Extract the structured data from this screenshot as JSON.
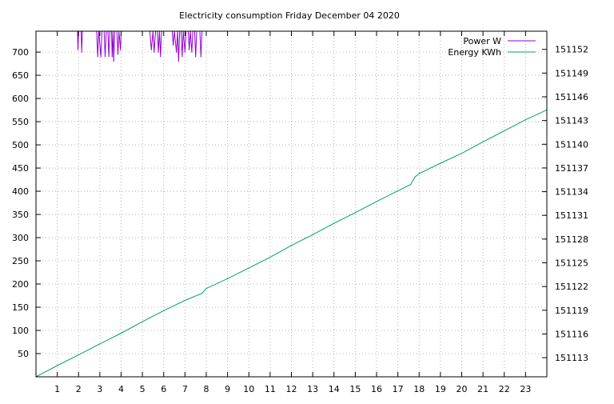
{
  "chart_data": {
    "type": "line",
    "title": "Electricity consumption Friday December 04 2020",
    "xlabel": "",
    "ylabel": "",
    "y2label": "",
    "grid": true,
    "legend_position": "top-right",
    "xlim": [
      0,
      24
    ],
    "ylim": [
      0,
      745
    ],
    "y2lim": [
      151110.58,
      151154.3
    ],
    "x_ticks": [
      "1",
      "2",
      "3",
      "4",
      "5",
      "6",
      "7",
      "8",
      "9",
      "10",
      "11",
      "12",
      "13",
      "14",
      "15",
      "16",
      "17",
      "18",
      "19",
      "20",
      "21",
      "22",
      "23"
    ],
    "y_ticks": [
      "50",
      "100",
      "150",
      "200",
      "250",
      "300",
      "350",
      "400",
      "450",
      "500",
      "550",
      "600",
      "650",
      "700"
    ],
    "y2_ticks": [
      "151113",
      "151116",
      "151119",
      "151122",
      "151125",
      "151128",
      "151131",
      "151134",
      "151137",
      "151140",
      "151143",
      "151146",
      "151149",
      "151152"
    ],
    "series": [
      {
        "name": "Power W",
        "axis": "left",
        "color": "#9400d3",
        "style": "spikes",
        "points": [
          [
            1.95,
            745
          ],
          [
            1.97,
            705
          ],
          [
            2.0,
            745
          ],
          [
            2.12,
            745
          ],
          [
            2.15,
            700
          ],
          [
            2.18,
            745
          ],
          [
            2.85,
            745
          ],
          [
            2.9,
            690
          ],
          [
            2.95,
            745
          ],
          [
            3.05,
            690
          ],
          [
            3.1,
            745
          ],
          [
            3.2,
            745
          ],
          [
            3.25,
            690
          ],
          [
            3.3,
            745
          ],
          [
            3.38,
            745
          ],
          [
            3.42,
            690
          ],
          [
            3.47,
            745
          ],
          [
            3.55,
            745
          ],
          [
            3.58,
            690
          ],
          [
            3.62,
            745
          ],
          [
            3.65,
            680
          ],
          [
            3.7,
            745
          ],
          [
            3.8,
            745
          ],
          [
            3.85,
            695
          ],
          [
            3.9,
            745
          ],
          [
            3.97,
            705
          ],
          [
            4.0,
            745
          ],
          [
            4.05,
            745
          ],
          [
            5.35,
            745
          ],
          [
            5.42,
            705
          ],
          [
            5.5,
            745
          ],
          [
            5.55,
            700
          ],
          [
            5.62,
            745
          ],
          [
            5.7,
            745
          ],
          [
            5.75,
            700
          ],
          [
            5.8,
            745
          ],
          [
            5.85,
            690
          ],
          [
            5.9,
            745
          ],
          [
            6.4,
            745
          ],
          [
            6.45,
            715
          ],
          [
            6.5,
            745
          ],
          [
            6.6,
            700
          ],
          [
            6.65,
            745
          ],
          [
            6.7,
            680
          ],
          [
            6.75,
            745
          ],
          [
            6.82,
            745
          ],
          [
            6.87,
            690
          ],
          [
            6.92,
            745
          ],
          [
            7.0,
            700
          ],
          [
            7.05,
            745
          ],
          [
            7.15,
            745
          ],
          [
            7.2,
            705
          ],
          [
            7.25,
            745
          ],
          [
            7.32,
            700
          ],
          [
            7.37,
            745
          ],
          [
            7.45,
            745
          ],
          [
            7.5,
            690
          ],
          [
            7.55,
            745
          ],
          [
            7.7,
            745
          ],
          [
            7.75,
            690
          ],
          [
            7.8,
            745
          ]
        ]
      },
      {
        "name": "Energy KWh",
        "axis": "right",
        "color": "#009e73",
        "style": "line",
        "points": [
          [
            0,
            151110.59
          ],
          [
            1,
            151112.0
          ],
          [
            2,
            151113.35
          ],
          [
            3,
            151114.75
          ],
          [
            4,
            151116.1
          ],
          [
            5,
            151117.55
          ],
          [
            6,
            151118.95
          ],
          [
            7,
            151120.25
          ],
          [
            7.8,
            151121.15
          ],
          [
            8,
            151121.75
          ],
          [
            9,
            151123.0
          ],
          [
            10,
            151124.35
          ],
          [
            11,
            151125.7
          ],
          [
            12,
            151127.2
          ],
          [
            13,
            151128.55
          ],
          [
            14,
            151130.0
          ],
          [
            15,
            151131.35
          ],
          [
            16,
            151132.75
          ],
          [
            17,
            151134.1
          ],
          [
            17.6,
            151134.9
          ],
          [
            17.8,
            151135.85
          ],
          [
            18,
            151136.3
          ],
          [
            19,
            151137.6
          ],
          [
            20,
            151138.85
          ],
          [
            21,
            151140.3
          ],
          [
            22,
            151141.7
          ],
          [
            23,
            151143.1
          ],
          [
            24,
            151144.35
          ]
        ]
      }
    ]
  }
}
